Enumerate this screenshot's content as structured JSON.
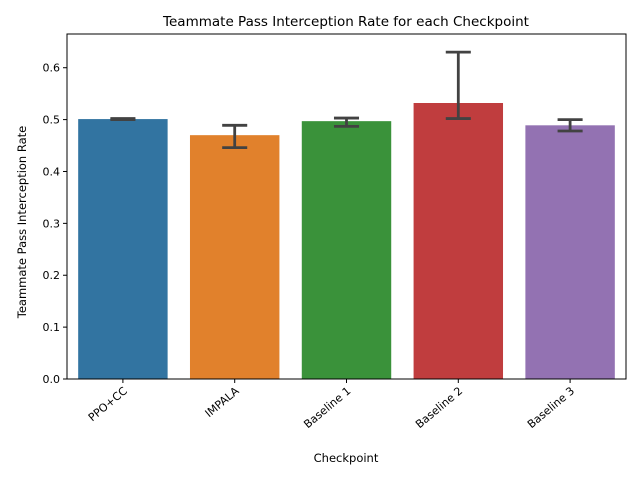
{
  "chart_data": {
    "type": "bar",
    "title": "Teammate Pass Interception Rate for each Checkpoint",
    "xlabel": "Checkpoint",
    "ylabel": "Teammate Pass Interception Rate",
    "categories": [
      "PPO+CC",
      "IMPALA",
      "Baseline 1",
      "Baseline 2",
      "Baseline 3"
    ],
    "values": [
      0.501,
      0.47,
      0.497,
      0.532,
      0.489
    ],
    "error_low": [
      0.5,
      0.446,
      0.487,
      0.502,
      0.478
    ],
    "error_high": [
      0.502,
      0.489,
      0.503,
      0.63,
      0.5
    ],
    "colors": [
      "#3274a1",
      "#e1812c",
      "#3a923a",
      "#c03d3e",
      "#9372b2"
    ],
    "error_color": "#424242",
    "ylim": [
      0,
      0.665
    ],
    "yticks": [
      0.0,
      0.1,
      0.2,
      0.3,
      0.4,
      0.5,
      0.6
    ],
    "ytick_labels": [
      "0.0",
      "0.1",
      "0.2",
      "0.3",
      "0.4",
      "0.5",
      "0.6"
    ],
    "grid": false,
    "legend": "none"
  }
}
